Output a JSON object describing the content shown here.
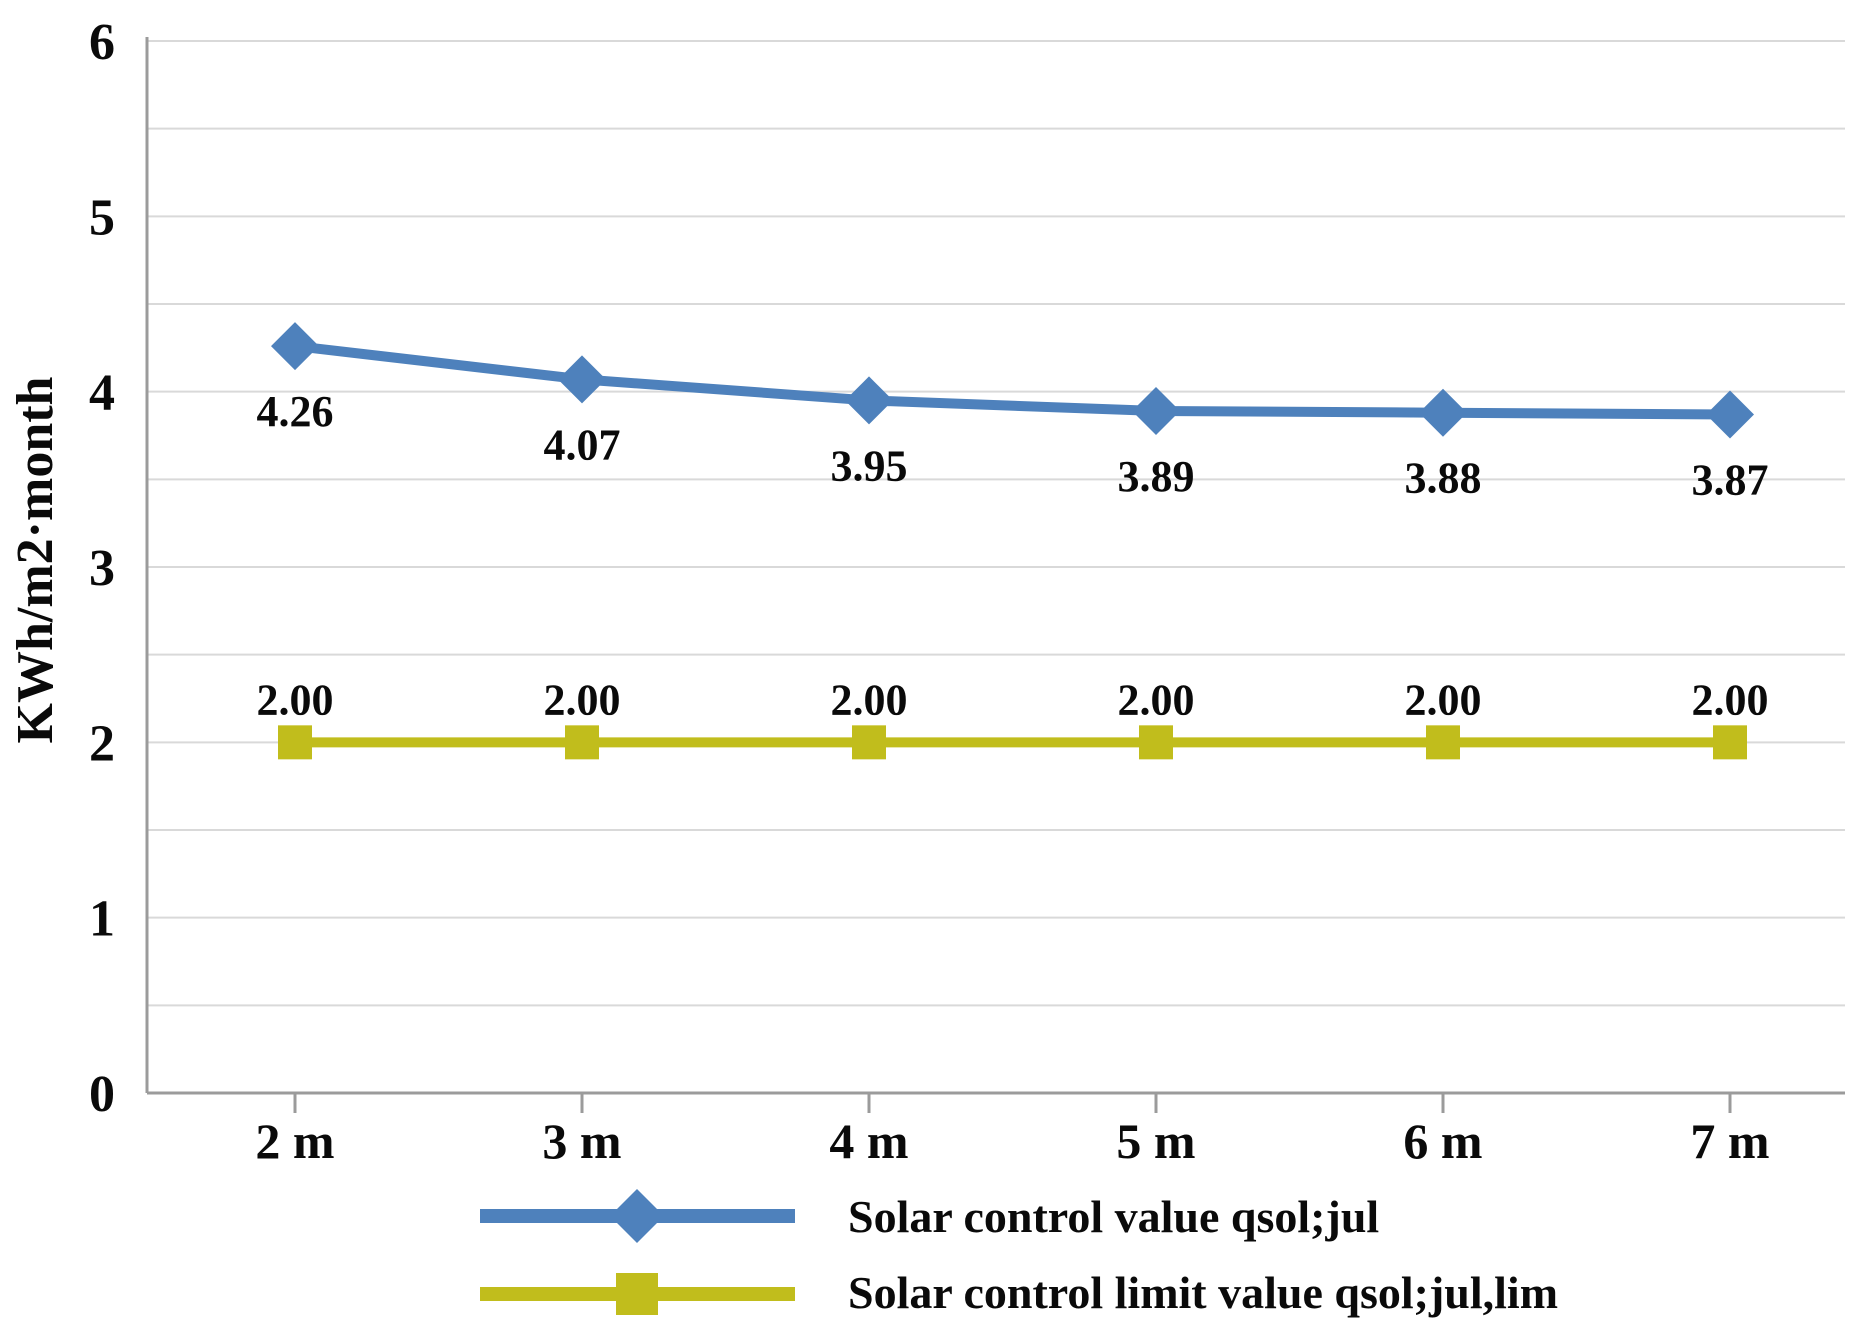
{
  "chart_data": {
    "type": "line",
    "title": "",
    "xlabel": "",
    "ylabel": "KWh/m2·month",
    "categories": [
      "2 m",
      "3 m",
      "4 m",
      "5 m",
      "6 m",
      "7 m"
    ],
    "series": [
      {
        "name": "Solar control value qsol;jul",
        "values": [
          4.26,
          4.07,
          3.95,
          3.89,
          3.88,
          3.87
        ],
        "labels": [
          "4.26",
          "4.07",
          "3.95",
          "3.89",
          "3.88",
          "3.87"
        ],
        "color": "#4e81bc",
        "marker": "diamond",
        "label_position": "below"
      },
      {
        "name": "Solar control limit value qsol;jul,lim",
        "values": [
          2,
          2,
          2,
          2,
          2,
          2
        ],
        "labels": [
          "2.00",
          "2.00",
          "2.00",
          "2.00",
          "2.00",
          "2.00"
        ],
        "color": "#c1bd1c",
        "marker": "square",
        "label_position": "above"
      }
    ],
    "ylim": [
      0,
      6
    ],
    "ytick_values": [
      0,
      1,
      2,
      3,
      4,
      5,
      6
    ],
    "grid_step": 0.5,
    "grid": true,
    "legend_position": "bottom",
    "axis_color": "#9b9b9b",
    "grid_color": "#d9d9d9",
    "text_color": "#0a0a0a"
  }
}
